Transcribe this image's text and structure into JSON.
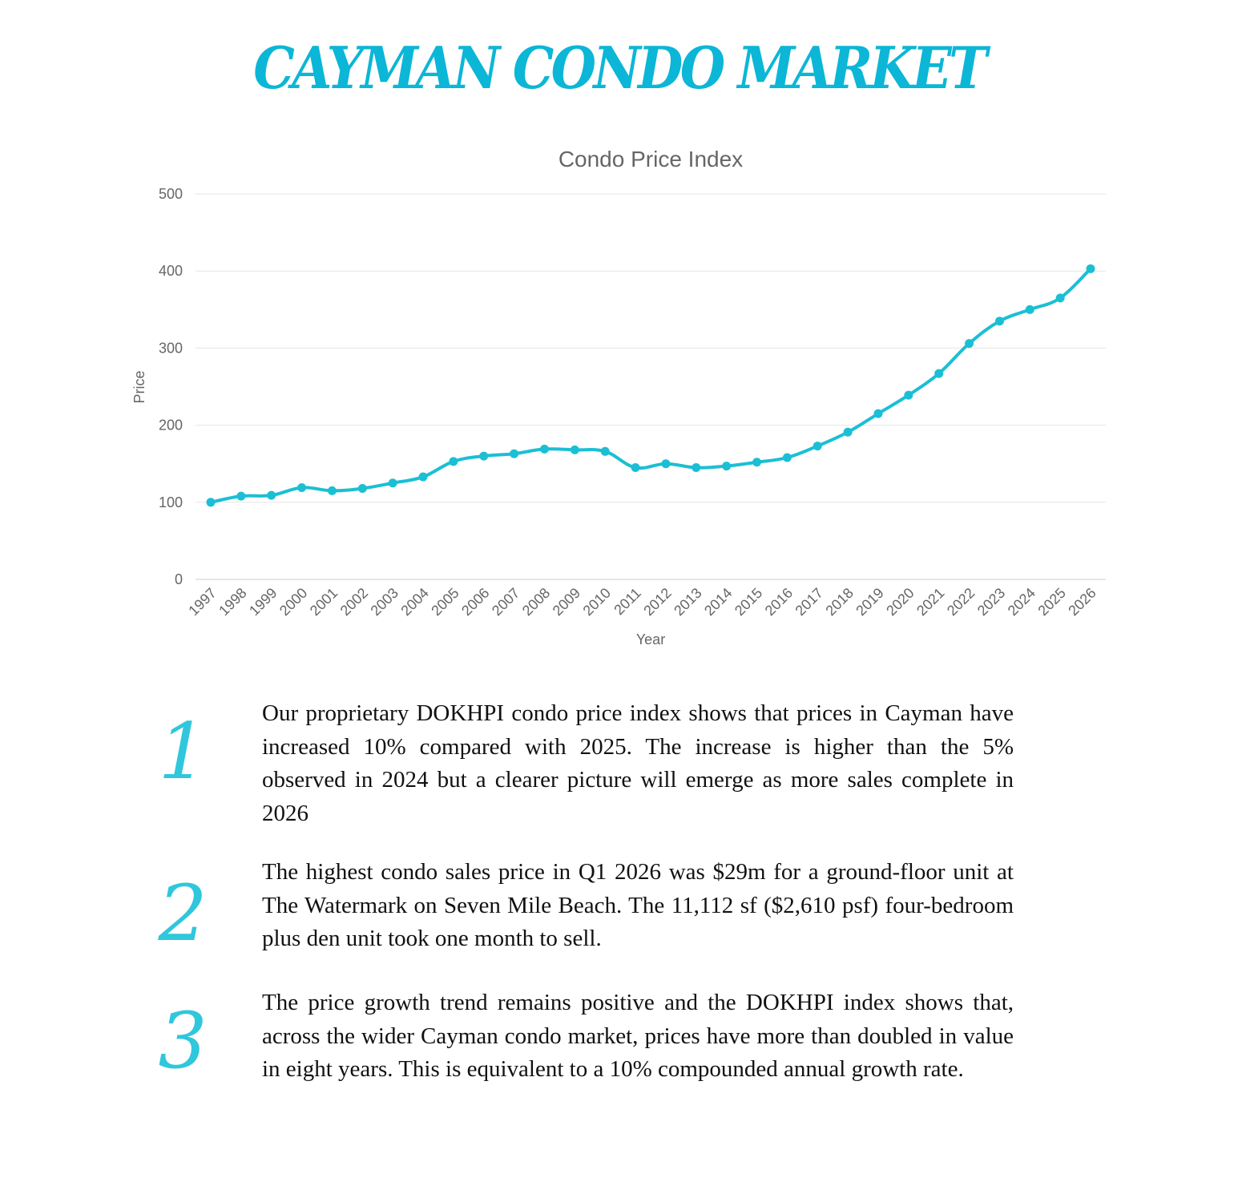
{
  "header": {
    "title": "CAYMAN CONDO MARKET"
  },
  "chart_data": {
    "type": "line",
    "title": "Condo Price Index",
    "xlabel": "Year",
    "ylabel": "Price",
    "ylim": [
      0,
      500
    ],
    "yticks": [
      0,
      100,
      200,
      300,
      400,
      500
    ],
    "grid": true,
    "color": "#1bbfd4",
    "categories": [
      "1997",
      "1998",
      "1999",
      "2000",
      "2001",
      "2002",
      "2003",
      "2004",
      "2005",
      "2006",
      "2007",
      "2008",
      "2009",
      "2010",
      "2011",
      "2012",
      "2013",
      "2014",
      "2015",
      "2016",
      "2017",
      "2018",
      "2019",
      "2020",
      "2021",
      "2022",
      "2023",
      "2024",
      "2025",
      "2026"
    ],
    "series": [
      {
        "values": [
          100,
          108,
          109,
          119,
          115,
          118,
          125,
          133,
          153,
          160,
          163,
          169,
          168,
          166,
          145,
          150,
          145,
          147,
          152,
          158,
          173,
          191,
          215,
          239,
          267,
          306,
          335,
          350,
          365,
          403
        ]
      }
    ]
  },
  "points": [
    {
      "number": "1",
      "text": "Our proprietary DOKHPI condo price index shows that prices in Cayman have increased 10% compared with 2025. The increase is higher than the 5% observed in 2024 but a clearer picture will emerge as more sales complete in 2026"
    },
    {
      "number": "2",
      "text": "The highest condo sales price in Q1 2026 was $29m for a ground-floor unit at The Watermark on Seven Mile Beach. The 11,112 sf ($2,610 psf) four-bedroom plus den unit took one month to sell."
    },
    {
      "number": "3",
      "text": "The price growth trend remains positive and the DOKHPI index shows that, across the wider Cayman condo market, prices have more than doubled in value in eight years. This is equivalent to a 10% compounded annual growth rate."
    }
  ]
}
